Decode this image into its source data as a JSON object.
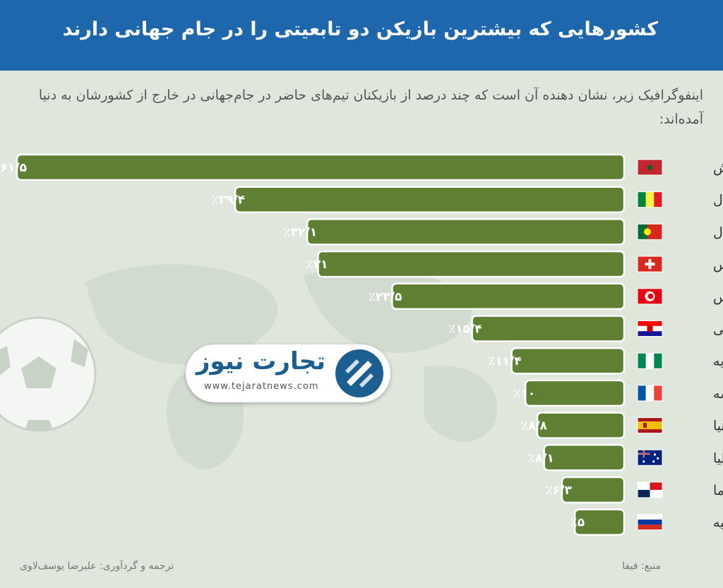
{
  "header": {
    "title": "کشورهایی که بیشترین بازیکن دو تابعیتی را در جام جهانی دارند"
  },
  "subtitle": "اینفوگرافیک زیر، نشان دهنده آن است که چند درصد از بازیکنان  تیم‌های حاضر در جام‌جهانی در خارج از کشورشان به دنیا آمده‌اند:",
  "colors": {
    "header": "#1f67ad",
    "bar": "#5f7f32",
    "bar_border": "#ffffff",
    "background": "#dfe6dc"
  },
  "chart_data": {
    "type": "bar",
    "orientation": "horizontal",
    "categories": [
      "مراکش",
      "سنگال",
      "پرتغال",
      "سوئیس",
      "تونس",
      "کرواسی",
      "نیجریه",
      "فرانسه",
      "اسپانیا",
      "استرالیا",
      "پاناما",
      "روسیه"
    ],
    "values": [
      61.5,
      39.4,
      32.1,
      31,
      23.5,
      15.4,
      11.4,
      10,
      8.8,
      8.1,
      6.3,
      5
    ],
    "value_labels": [
      "٪۶۱/۵",
      "٪۳۹/۴",
      "٪۳۲/۱",
      "٪۳۱",
      "٪۲۳/۵",
      "٪۱۵/۴",
      "٪۱۱/۴",
      "٪۱۰",
      "٪۸/۸",
      "٪۸/۱",
      "٪۶/۳",
      "٪۵"
    ],
    "flag_icons": [
      "morocco-flag-icon",
      "senegal-flag-icon",
      "portugal-flag-icon",
      "switzerland-flag-icon",
      "tunisia-flag-icon",
      "croatia-flag-icon",
      "nigeria-flag-icon",
      "france-flag-icon",
      "spain-flag-icon",
      "australia-flag-icon",
      "panama-flag-icon",
      "russia-flag-icon"
    ],
    "xlim": [
      0,
      61.5
    ],
    "grid": false,
    "legend": "none"
  },
  "logo": {
    "name": "تجارت نیوز",
    "url": "www.tejaratnews.com"
  },
  "footer": {
    "source": "منبع: فیفا",
    "credit": "ترجمه و گردآوری: علیرضا یوسف‌لاوی"
  }
}
